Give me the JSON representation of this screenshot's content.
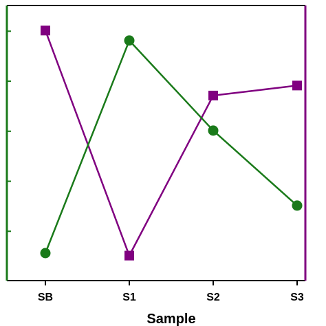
{
  "chart_data": {
    "type": "line",
    "xlabel": "Sample",
    "ylabel": "",
    "categories": [
      "SB",
      "S1",
      "S2",
      "S3"
    ],
    "ylim": [
      0,
      5.5
    ],
    "y_ticks": [
      1,
      2,
      3,
      4,
      5
    ],
    "y_tick_labels_visible": false,
    "grid": false,
    "legend": "none",
    "series": [
      {
        "values": [
          5.0,
          0.5,
          3.7,
          3.9
        ],
        "color": "#800080",
        "marker": "square"
      },
      {
        "values": [
          0.55,
          4.8,
          3.0,
          1.5
        ],
        "color": "#1a7a1a",
        "marker": "circle"
      }
    ],
    "colors": {
      "left_axis": "#1a7a1a",
      "right_axis": "#800080",
      "frame": "#000000"
    }
  }
}
